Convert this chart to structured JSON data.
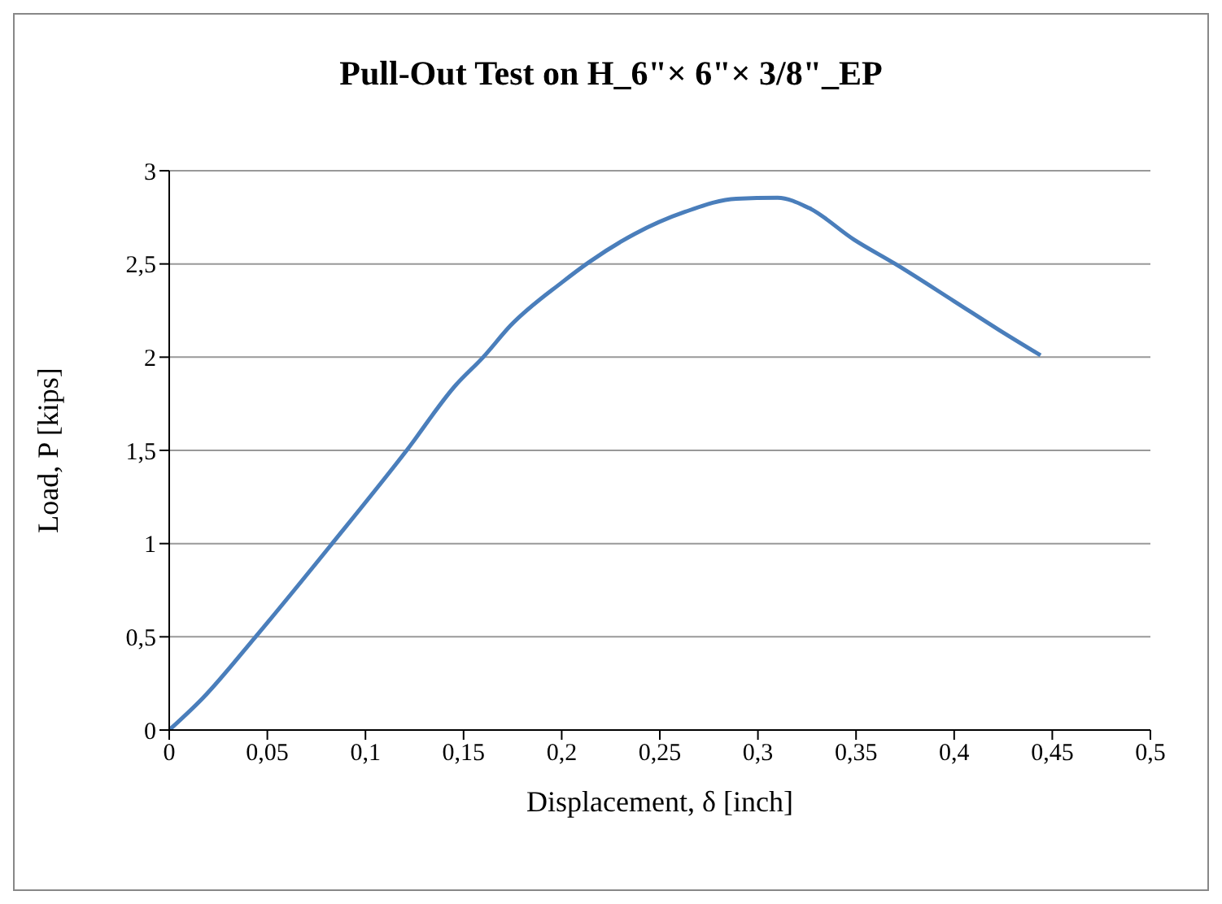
{
  "chart_data": {
    "type": "line",
    "title": "Pull-Out Test on H_6\"× 6\"× 3/8\"_EP",
    "xlabel": "Displacement, δ  [inch]",
    "ylabel": "Load, P  [kips]",
    "series": [
      {
        "color": "#4a7ebb",
        "x": [
          0,
          0.017,
          0.044,
          0.083,
          0.121,
          0.146,
          0.16,
          0.174,
          0.2,
          0.214,
          0.237,
          0.263,
          0.289,
          0.31,
          0.326,
          0.349,
          0.37,
          0.4,
          0.423,
          0.444
        ],
        "values": [
          0,
          0.17,
          0.5,
          1.0,
          1.5,
          1.85,
          2.0,
          2.17,
          2.4,
          2.51,
          2.66,
          2.78,
          2.85,
          2.855,
          2.8,
          2.63,
          2.5,
          2.3,
          2.145,
          2.01
        ]
      }
    ],
    "xlim": [
      0,
      0.5
    ],
    "ylim": [
      0,
      3
    ],
    "xticks": [
      0,
      {
        "value": 0.05,
        "label": "0,05"
      },
      {
        "value": 0.1,
        "label": "0,1"
      },
      {
        "value": 0.15,
        "label": "0,15"
      },
      {
        "value": 0.2,
        "label": "0,2"
      },
      {
        "value": 0.25,
        "label": "0,25"
      },
      {
        "value": 0.3,
        "label": "0,3"
      },
      {
        "value": 0.35,
        "label": "0,35"
      },
      {
        "value": 0.4,
        "label": "0,4"
      },
      {
        "value": 0.45,
        "label": "0,45"
      },
      {
        "value": 0.5,
        "label": "0,5"
      }
    ],
    "yticks": [
      0,
      {
        "value": 0.5,
        "label": "0,5"
      },
      1,
      {
        "value": 1.5,
        "label": "1,5"
      },
      2,
      {
        "value": 2.5,
        "label": "2,5"
      },
      3
    ],
    "grid": "y",
    "marker": "none",
    "line_style": "solid"
  }
}
